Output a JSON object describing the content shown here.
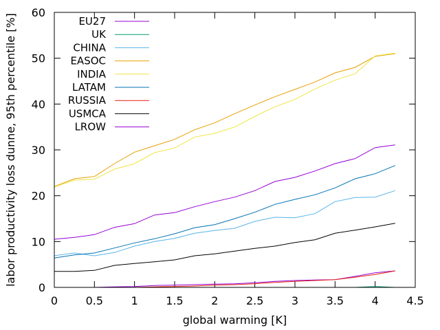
{
  "chart_data": {
    "type": "line",
    "xlabel": "global warming [K]",
    "ylabel": "labor productivity loss dunne, 95th percentile [%]",
    "xlim": [
      0,
      4.5
    ],
    "ylim": [
      0,
      60
    ],
    "xticks": [
      0,
      0.5,
      1,
      1.5,
      2,
      2.5,
      3,
      3.5,
      4,
      4.5
    ],
    "xtick_labels": [
      "0",
      "0.5",
      "1",
      "1.5",
      "2",
      "2.5",
      "3",
      "3.5",
      "4",
      "4.5"
    ],
    "yticks": [
      0,
      10,
      20,
      30,
      40,
      50,
      60
    ],
    "ytick_labels": [
      "0",
      "10",
      "20",
      "30",
      "40",
      "50",
      "60"
    ],
    "grid": false,
    "legend_position": "top-left",
    "x": [
      0,
      0.25,
      0.5,
      0.75,
      1,
      1.25,
      1.5,
      1.75,
      2,
      2.25,
      2.5,
      2.75,
      3,
      3.25,
      3.5,
      3.75,
      4,
      4.25
    ],
    "series": [
      {
        "name": "EU27",
        "color": "#9400d3",
        "values": [
          0,
          0,
          0,
          0.1,
          0.2,
          0.4,
          0.5,
          0.6,
          0.7,
          0.8,
          1.0,
          1.3,
          1.5,
          1.6,
          1.7,
          2.4,
          3.2,
          3.6
        ]
      },
      {
        "name": "UK",
        "color": "#009e73",
        "values": [
          0,
          0,
          0,
          0,
          0,
          0,
          0,
          0,
          0,
          0,
          0,
          0,
          0,
          0,
          0,
          0,
          0.2,
          0
        ]
      },
      {
        "name": "CHINA",
        "color": "#56b4e9",
        "values": [
          6.9,
          7.5,
          6.9,
          7.6,
          9.0,
          10.0,
          10.7,
          11.8,
          12.4,
          12.9,
          14.4,
          15.3,
          15.2,
          16.1,
          18.7,
          19.6,
          19.7,
          21.1
        ]
      },
      {
        "name": "EASOC",
        "color": "#e69f00",
        "values": [
          22.0,
          23.7,
          24.2,
          27.0,
          29.5,
          30.9,
          32.3,
          34.4,
          35.9,
          37.9,
          39.8,
          41.6,
          43.2,
          44.8,
          46.8,
          48.0,
          50.4,
          51.0
        ]
      },
      {
        "name": "INDIA",
        "color": "#f0e442",
        "values": [
          21.9,
          23.4,
          23.6,
          25.8,
          27.0,
          29.4,
          30.4,
          32.8,
          33.6,
          35.0,
          37.3,
          39.4,
          41.0,
          43.3,
          45.2,
          46.6,
          50.5,
          51.1
        ]
      },
      {
        "name": "LATAM",
        "color": "#0072b2",
        "values": [
          6.4,
          7.1,
          7.5,
          8.6,
          9.7,
          10.6,
          11.7,
          13.0,
          13.7,
          15.0,
          16.4,
          18.1,
          19.2,
          20.2,
          21.7,
          23.7,
          24.8,
          26.6
        ]
      },
      {
        "name": "RUSSIA",
        "color": "#e51e10",
        "values": [
          0,
          0,
          0,
          0,
          0,
          0.1,
          0.2,
          0.3,
          0.5,
          0.6,
          0.8,
          1.1,
          1.3,
          1.5,
          1.7,
          2.2,
          2.8,
          3.6
        ]
      },
      {
        "name": "USMCA",
        "color": "#000000",
        "values": [
          3.5,
          3.5,
          3.7,
          4.8,
          5.2,
          5.6,
          6.0,
          6.9,
          7.3,
          7.9,
          8.5,
          9.0,
          9.8,
          10.4,
          11.8,
          12.5,
          13.2,
          14.0
        ]
      },
      {
        "name": "LROW",
        "color": "#9400d3",
        "values": [
          10.5,
          10.9,
          11.5,
          13.1,
          13.9,
          15.8,
          16.3,
          17.6,
          18.7,
          19.7,
          21.1,
          23.1,
          24.0,
          25.4,
          27.0,
          28.1,
          30.5,
          31.1
        ]
      }
    ]
  }
}
